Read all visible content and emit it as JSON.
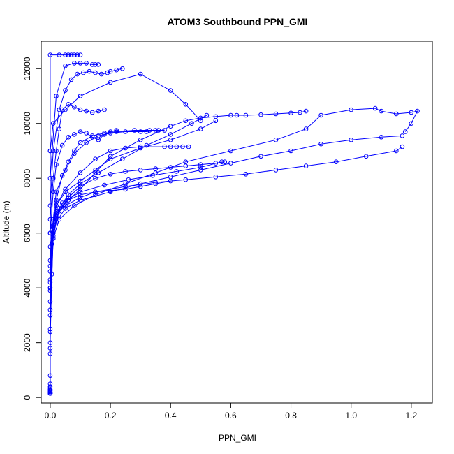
{
  "chart_data": {
    "type": "line",
    "title": "ATOM3 Southbound PPN_GMI",
    "xlabel": "PPN_GMI",
    "ylabel": "Altitude (m)",
    "xlim": [
      -0.03,
      1.27
    ],
    "ylim": [
      -200,
      13000
    ],
    "xticks": [
      0.0,
      0.2,
      0.4,
      0.6,
      0.8,
      1.0,
      1.2
    ],
    "xtick_labels": [
      "0.0",
      "0.2",
      "0.4",
      "0.6",
      "0.8",
      "1.0",
      "1.2"
    ],
    "yticks": [
      0,
      2000,
      4000,
      6000,
      8000,
      10000,
      12000
    ],
    "ytick_labels": [
      "0",
      "2000",
      "4000",
      "6000",
      "8000",
      "10000",
      "12000"
    ],
    "color": "#0000ff",
    "marker": "open-circle",
    "grid": false,
    "legend": "none",
    "series": [
      {
        "x": [
          0.0,
          0.0,
          0.0,
          0.0,
          0.0,
          0.0,
          0.0,
          0.005,
          0.01,
          0.02,
          0.05,
          0.1,
          0.15,
          0.25,
          0.35,
          0.45,
          0.55,
          0.65,
          0.75,
          0.85,
          0.95,
          1.05,
          1.15,
          1.17
        ],
        "y": [
          150,
          800,
          1600,
          2400,
          3200,
          4000,
          4800,
          5600,
          6200,
          6700,
          7000,
          7300,
          7500,
          7700,
          7850,
          7950,
          8050,
          8150,
          8300,
          8450,
          8600,
          8800,
          9000,
          9150
        ]
      },
      {
        "x": [
          0.0,
          0.0,
          0.0,
          0.01,
          0.02,
          0.05,
          0.1,
          0.2,
          0.3,
          0.4,
          0.5,
          0.6,
          0.7,
          0.8,
          0.9,
          1.0,
          1.1,
          1.17
        ],
        "y": [
          300,
          1800,
          4000,
          5800,
          6400,
          6900,
          7200,
          7500,
          7800,
          8050,
          8300,
          8550,
          8800,
          9000,
          9250,
          9400,
          9500,
          9550
        ]
      },
      {
        "x": [
          0.0,
          0.0,
          0.01,
          0.03,
          0.08,
          0.15,
          0.25,
          0.35,
          0.45,
          0.6,
          0.75,
          0.85,
          0.9,
          1.0,
          1.08,
          1.1,
          1.15,
          1.2,
          1.22,
          1.2,
          1.18
        ],
        "y": [
          200,
          3000,
          5800,
          6500,
          7000,
          7400,
          7800,
          8200,
          8600,
          9000,
          9400,
          9800,
          10300,
          10500,
          10550,
          10450,
          10350,
          10400,
          10450,
          10000,
          9700
        ]
      },
      {
        "x": [
          0.0,
          0.0,
          0.01,
          0.02,
          0.05,
          0.1,
          0.15,
          0.2,
          0.3,
          0.4,
          0.45,
          0.5,
          0.55,
          0.6,
          0.62,
          0.65,
          0.7,
          0.75,
          0.8,
          0.83,
          0.85
        ],
        "y": [
          400,
          2500,
          5900,
          6600,
          7100,
          7600,
          8200,
          8800,
          9400,
          9900,
          10100,
          10200,
          10250,
          10300,
          10300,
          10300,
          10320,
          10350,
          10380,
          10400,
          10450
        ]
      },
      {
        "x": [
          0.0,
          0.0,
          0.01,
          0.03,
          0.06,
          0.1,
          0.15,
          0.2,
          0.25,
          0.3,
          0.35,
          0.4,
          0.45,
          0.5,
          0.55,
          0.58
        ],
        "y": [
          250,
          3500,
          6000,
          6800,
          7300,
          7700,
          8000,
          8150,
          8250,
          8300,
          8350,
          8400,
          8450,
          8500,
          8550,
          8600
        ]
      },
      {
        "x": [
          0.0,
          0.0,
          0.005,
          0.02,
          0.05,
          0.1,
          0.15,
          0.2,
          0.25,
          0.3,
          0.38,
          0.4,
          0.42,
          0.44,
          0.46
        ],
        "y": [
          500,
          4200,
          6100,
          7000,
          7600,
          8200,
          8700,
          9000,
          9100,
          9150,
          9150,
          9150,
          9150,
          9150,
          9150
        ]
      },
      {
        "x": [
          0.0,
          0.0,
          0.01,
          0.02,
          0.05,
          0.08,
          0.12,
          0.16,
          0.2,
          0.25,
          0.3,
          0.32,
          0.35,
          0.38
        ],
        "y": [
          150,
          5000,
          6500,
          7500,
          8300,
          8900,
          9300,
          9550,
          9650,
          9700,
          9700,
          9700,
          9750,
          9750
        ]
      },
      {
        "x": [
          0.0,
          0.0,
          0.01,
          0.02,
          0.04,
          0.06,
          0.08,
          0.1,
          0.12,
          0.14,
          0.16,
          0.18,
          0.2,
          0.22
        ],
        "y": [
          300,
          6000,
          7500,
          8500,
          9200,
          9500,
          9600,
          9700,
          9650,
          9500,
          9400,
          9600,
          9700,
          9750
        ]
      },
      {
        "x": [
          0.0,
          0.0,
          0.01,
          0.02,
          0.03,
          0.04,
          0.06,
          0.08,
          0.1,
          0.12,
          0.14,
          0.16,
          0.18
        ],
        "y": [
          200,
          6500,
          8000,
          9000,
          9800,
          10500,
          10700,
          10600,
          10500,
          10450,
          10400,
          10450,
          10500
        ]
      },
      {
        "x": [
          0.0,
          0.0,
          0.01,
          0.03,
          0.05,
          0.07,
          0.09,
          0.11,
          0.13,
          0.15,
          0.17,
          0.19,
          0.2,
          0.22,
          0.24
        ],
        "y": [
          200,
          7000,
          9000,
          10500,
          11200,
          11600,
          11800,
          11850,
          11900,
          11850,
          11800,
          11850,
          11900,
          11950,
          12000
        ]
      },
      {
        "x": [
          0.0,
          0.0,
          0.02,
          0.05,
          0.08,
          0.1,
          0.12,
          0.14,
          0.15,
          0.16
        ],
        "y": [
          150,
          8000,
          11000,
          12100,
          12200,
          12200,
          12200,
          12150,
          12150,
          12150
        ]
      },
      {
        "x": [
          0.0,
          0.0,
          0.0,
          0.03,
          0.05,
          0.06,
          0.07,
          0.08,
          0.09,
          0.1
        ],
        "y": [
          150,
          9000,
          12500,
          12500,
          12500,
          12500,
          12500,
          12500,
          12500,
          12500
        ]
      },
      {
        "x": [
          0.0,
          0.0,
          0.0,
          0.01,
          0.05,
          0.1,
          0.2,
          0.3,
          0.4,
          0.45,
          0.5
        ],
        "y": [
          200,
          6000,
          9000,
          10000,
          10500,
          11000,
          11500,
          11800,
          11200,
          10700,
          10100
        ]
      },
      {
        "x": [
          0.0,
          0.0,
          0.02,
          0.06,
          0.1,
          0.15,
          0.2,
          0.25,
          0.3,
          0.35,
          0.4
        ],
        "y": [
          250,
          5500,
          6800,
          7200,
          7400,
          7500,
          7550,
          7600,
          7700,
          7800,
          7900
        ]
      },
      {
        "x": [
          0.0,
          0.0,
          0.005,
          0.01,
          0.02,
          0.05,
          0.1,
          0.15,
          0.2,
          0.3,
          0.4,
          0.5,
          0.55
        ],
        "y": [
          150,
          2000,
          4500,
          6200,
          7000,
          7500,
          7900,
          8300,
          8700,
          9100,
          9400,
          9800,
          10100
        ]
      },
      {
        "x": [
          0.0,
          0.0,
          0.01,
          0.04,
          0.1,
          0.18,
          0.26,
          0.34,
          0.42,
          0.5,
          0.57
        ],
        "y": [
          350,
          4600,
          6300,
          7100,
          7500,
          7750,
          7950,
          8100,
          8250,
          8400,
          8600
        ]
      },
      {
        "x": [
          0.0,
          0.0,
          0.01,
          0.02,
          0.04,
          0.06,
          0.08,
          0.1,
          0.14,
          0.18,
          0.22,
          0.28,
          0.33,
          0.36
        ],
        "y": [
          150,
          4300,
          6200,
          7200,
          8100,
          8600,
          9000,
          9300,
          9550,
          9650,
          9700,
          9750,
          9750,
          9750
        ]
      },
      {
        "x": [
          0.0,
          0.01,
          0.03,
          0.06,
          0.1,
          0.16,
          0.24,
          0.32,
          0.4,
          0.47,
          0.52
        ],
        "y": [
          3900,
          6000,
          6900,
          7400,
          7800,
          8200,
          8700,
          9200,
          9600,
          10000,
          10300
        ]
      }
    ]
  }
}
